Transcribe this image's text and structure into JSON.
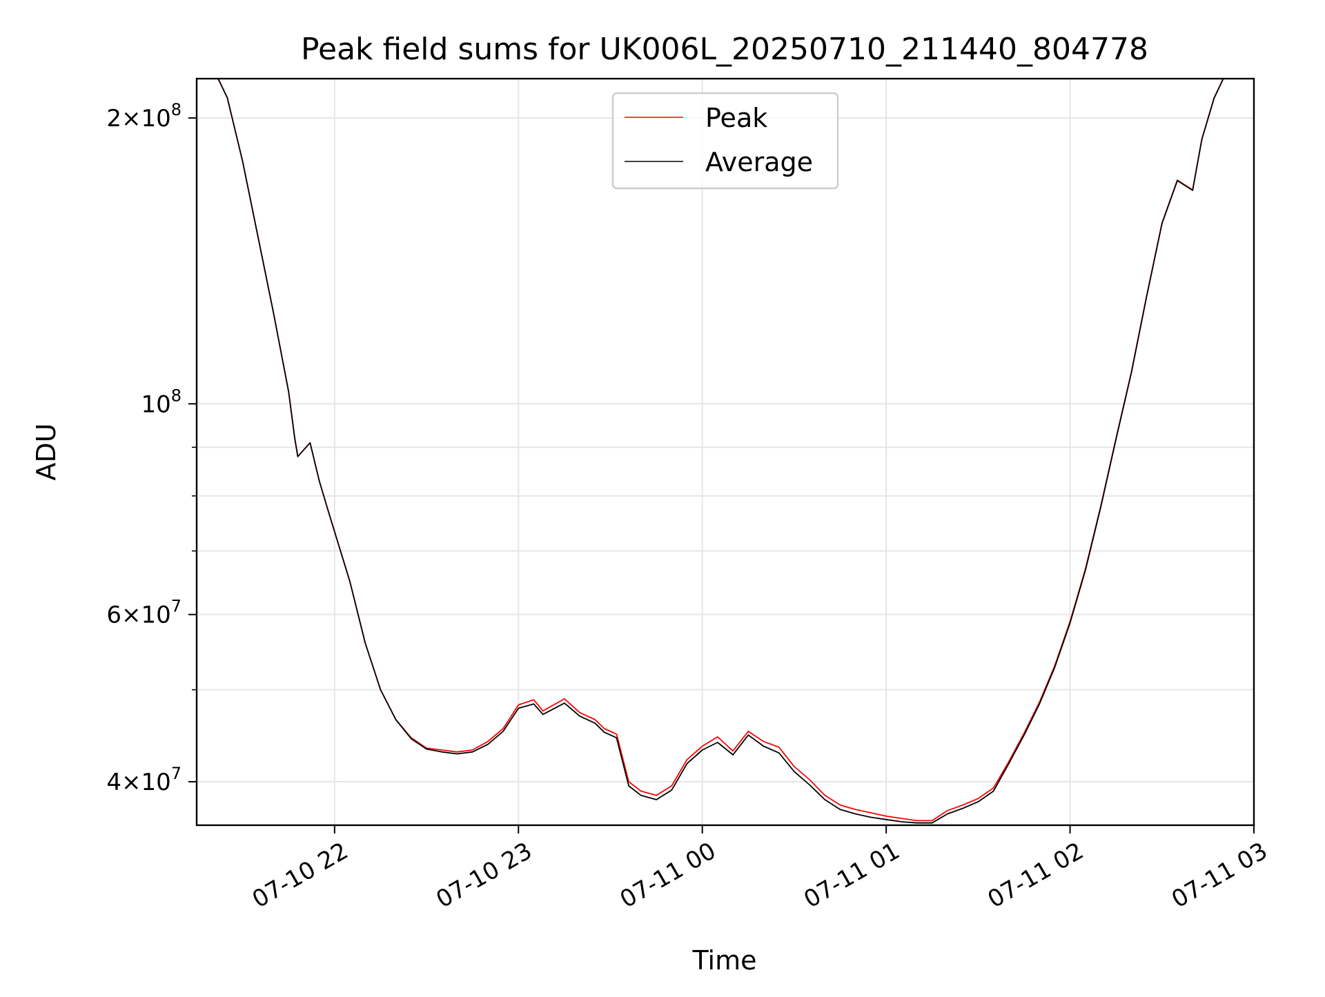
{
  "chart_data": {
    "type": "line",
    "title": "Peak field sums for UK006L_20250710_211440_804778",
    "xlabel": "Time",
    "ylabel": "ADU",
    "x_scale": "time",
    "y_scale": "log",
    "xlim": [
      "2025-07-10T21:15",
      "2025-07-11T03:00"
    ],
    "ylim": [
      36000000,
      220000000
    ],
    "x_ticks": [
      {
        "value": "2025-07-10T22:00",
        "label": "07-10 22"
      },
      {
        "value": "2025-07-10T23:00",
        "label": "07-10 23"
      },
      {
        "value": "2025-07-11T00:00",
        "label": "07-11 00"
      },
      {
        "value": "2025-07-11T01:00",
        "label": "07-11 01"
      },
      {
        "value": "2025-07-11T02:00",
        "label": "07-11 02"
      },
      {
        "value": "2025-07-11T03:00",
        "label": "07-11 03"
      }
    ],
    "y_major_ticks": [
      {
        "value": 40000000,
        "mantissa": "4",
        "exponent": "7"
      },
      {
        "value": 60000000,
        "mantissa": "6",
        "exponent": "7"
      },
      {
        "value": 100000000,
        "mantissa": "",
        "exponent": "8"
      },
      {
        "value": 200000000,
        "mantissa": "2",
        "exponent": "8"
      }
    ],
    "y_minor_ticks": [
      50000000,
      70000000,
      80000000,
      90000000
    ],
    "grid": true,
    "legend_position": "top-center",
    "series": [
      {
        "name": "Peak",
        "color": "#ff0000",
        "x": [
          "2025-07-10T21:15",
          "2025-07-10T21:22",
          "2025-07-10T21:25",
          "2025-07-10T21:30",
          "2025-07-10T21:35",
          "2025-07-10T21:40",
          "2025-07-10T21:45",
          "2025-07-10T21:47",
          "2025-07-10T21:48",
          "2025-07-10T21:52",
          "2025-07-10T21:55",
          "2025-07-10T21:58",
          "2025-07-10T22:05",
          "2025-07-10T22:10",
          "2025-07-10T22:15",
          "2025-07-10T22:20",
          "2025-07-10T22:25",
          "2025-07-10T22:30",
          "2025-07-10T22:35",
          "2025-07-10T22:40",
          "2025-07-10T22:45",
          "2025-07-10T22:50",
          "2025-07-10T22:55",
          "2025-07-10T23:00",
          "2025-07-10T23:05",
          "2025-07-10T23:08",
          "2025-07-10T23:15",
          "2025-07-10T23:20",
          "2025-07-10T23:25",
          "2025-07-10T23:28",
          "2025-07-10T23:32",
          "2025-07-10T23:36",
          "2025-07-10T23:40",
          "2025-07-10T23:45",
          "2025-07-10T23:50",
          "2025-07-10T23:55",
          "2025-07-11T00:00",
          "2025-07-11T00:05",
          "2025-07-11T00:10",
          "2025-07-11T00:15",
          "2025-07-11T00:20",
          "2025-07-11T00:25",
          "2025-07-11T00:30",
          "2025-07-11T00:35",
          "2025-07-11T00:40",
          "2025-07-11T00:45",
          "2025-07-11T00:50",
          "2025-07-11T00:55",
          "2025-07-11T01:00",
          "2025-07-11T01:05",
          "2025-07-11T01:10",
          "2025-07-11T01:15",
          "2025-07-11T01:20",
          "2025-07-11T01:25",
          "2025-07-11T01:30",
          "2025-07-11T01:35",
          "2025-07-11T01:40",
          "2025-07-11T01:45",
          "2025-07-11T01:50",
          "2025-07-11T01:55",
          "2025-07-11T02:00",
          "2025-07-11T02:05",
          "2025-07-11T02:10",
          "2025-07-11T02:15",
          "2025-07-11T02:20",
          "2025-07-11T02:25",
          "2025-07-11T02:30",
          "2025-07-11T02:35",
          "2025-07-11T02:40",
          "2025-07-11T02:41",
          "2025-07-11T02:43",
          "2025-07-11T02:47",
          "2025-07-11T02:50"
        ],
        "values": [
          220000000,
          220000000,
          210000000,
          180000000,
          150000000,
          125000000,
          103000000,
          92000000,
          88000000,
          91000000,
          83000000,
          77000000,
          65000000,
          56000000,
          50000000,
          46500000,
          44500000,
          43400000,
          43200000,
          43000000,
          43200000,
          44100000,
          45500000,
          48200000,
          48800000,
          47500000,
          48900000,
          47300000,
          46500000,
          45500000,
          44900000,
          40000000,
          39100000,
          38700000,
          39600000,
          42200000,
          43600000,
          44600000,
          43100000,
          45200000,
          44100000,
          43500000,
          41500000,
          40200000,
          38700000,
          37800000,
          37400000,
          37100000,
          36800000,
          36600000,
          36400000,
          36400000,
          37300000,
          37800000,
          38400000,
          39400000,
          42000000,
          45000000,
          48500000,
          53000000,
          59000000,
          67000000,
          78000000,
          92000000,
          108000000,
          130000000,
          155000000,
          172000000,
          168000000,
          175000000,
          190000000,
          210000000,
          220000000
        ]
      },
      {
        "name": "Average",
        "color": "#000000",
        "x": [
          "2025-07-10T21:15",
          "2025-07-10T21:22",
          "2025-07-10T21:25",
          "2025-07-10T21:30",
          "2025-07-10T21:35",
          "2025-07-10T21:40",
          "2025-07-10T21:45",
          "2025-07-10T21:47",
          "2025-07-10T21:48",
          "2025-07-10T21:52",
          "2025-07-10T21:55",
          "2025-07-10T21:58",
          "2025-07-10T22:05",
          "2025-07-10T22:10",
          "2025-07-10T22:15",
          "2025-07-10T22:20",
          "2025-07-10T22:25",
          "2025-07-10T22:30",
          "2025-07-10T22:35",
          "2025-07-10T22:40",
          "2025-07-10T22:45",
          "2025-07-10T22:50",
          "2025-07-10T22:55",
          "2025-07-10T23:00",
          "2025-07-10T23:05",
          "2025-07-10T23:08",
          "2025-07-10T23:15",
          "2025-07-10T23:20",
          "2025-07-10T23:25",
          "2025-07-10T23:28",
          "2025-07-10T23:32",
          "2025-07-10T23:36",
          "2025-07-10T23:40",
          "2025-07-10T23:45",
          "2025-07-10T23:50",
          "2025-07-10T23:55",
          "2025-07-11T00:00",
          "2025-07-11T00:05",
          "2025-07-11T00:10",
          "2025-07-11T00:15",
          "2025-07-11T00:20",
          "2025-07-11T00:25",
          "2025-07-11T00:30",
          "2025-07-11T00:35",
          "2025-07-11T00:40",
          "2025-07-11T00:45",
          "2025-07-11T00:50",
          "2025-07-11T00:55",
          "2025-07-11T01:00",
          "2025-07-11T01:05",
          "2025-07-11T01:10",
          "2025-07-11T01:15",
          "2025-07-11T01:20",
          "2025-07-11T01:25",
          "2025-07-11T01:30",
          "2025-07-11T01:35",
          "2025-07-11T01:40",
          "2025-07-11T01:45",
          "2025-07-11T01:50",
          "2025-07-11T01:55",
          "2025-07-11T02:00",
          "2025-07-11T02:05",
          "2025-07-11T02:10",
          "2025-07-11T02:15",
          "2025-07-11T02:20",
          "2025-07-11T02:25",
          "2025-07-11T02:30",
          "2025-07-11T02:35",
          "2025-07-11T02:40",
          "2025-07-11T02:41",
          "2025-07-11T02:43",
          "2025-07-11T02:47",
          "2025-07-11T02:50"
        ],
        "values": [
          220000000,
          220000000,
          210000000,
          180000000,
          150000000,
          125000000,
          103000000,
          92000000,
          88000000,
          91000000,
          83000000,
          77000000,
          65000000,
          56000000,
          50000000,
          46500000,
          44400000,
          43300000,
          43000000,
          42800000,
          43000000,
          43800000,
          45200000,
          47800000,
          48300000,
          47100000,
          48400000,
          46900000,
          46100000,
          45100000,
          44500000,
          39600000,
          38700000,
          38300000,
          39200000,
          41800000,
          43200000,
          44000000,
          42700000,
          44800000,
          43600000,
          42900000,
          41000000,
          39700000,
          38300000,
          37400000,
          37000000,
          36700000,
          36500000,
          36300000,
          36200000,
          36200000,
          37000000,
          37500000,
          38100000,
          39100000,
          41800000,
          44800000,
          48300000,
          52800000,
          58800000,
          66800000,
          77800000,
          91800000,
          107800000,
          129800000,
          154800000,
          171800000,
          167800000,
          174800000,
          189800000,
          209800000,
          220000000
        ]
      }
    ]
  }
}
